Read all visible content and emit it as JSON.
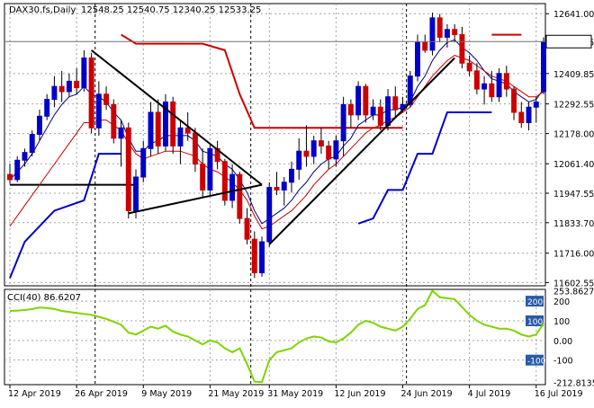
{
  "header": {
    "symbol": "DAX30.fs,Daily",
    "ohlc": "12548.25 12540.75 12340.25 12533.25"
  },
  "colors": {
    "bull": "#0000c8",
    "bear": "#cc0000",
    "ma_fast": "#000080",
    "ma_slow": "#cc0000",
    "level_red": "#cc0000",
    "level_blue": "#0000cc",
    "trendline": "#000000",
    "cci": "#7fd400",
    "grid": "#a0a0a0",
    "price_tag_bg": "#ffffff"
  },
  "chart_data": [
    {
      "type": "candlestick",
      "name": "price",
      "y_ticks": [
        "12641.00",
        "12533.25",
        "12409.85",
        "12292.55",
        "12178.00",
        "12061.40",
        "11947.55",
        "11833.70",
        "11716.00",
        "11602.55"
      ],
      "y_range": [
        11590,
        12680
      ],
      "current_price": 12533.25,
      "current_price_label": "12533.25",
      "x_labels": [
        "12 Apr 2019",
        "26 Apr 2019",
        "9 May 2019",
        "21 May 2019",
        "31 May 2019",
        "12 Jun 2019",
        "24 Jun 2019",
        "4 Jul 2019",
        "16 Jul 2019"
      ],
      "x_label_index": [
        0,
        9,
        18,
        27,
        35,
        44,
        53,
        62,
        71
      ],
      "candles": [
        [
          12020,
          12060,
          11985,
          12000
        ],
        [
          12000,
          12090,
          11990,
          12075
        ],
        [
          12075,
          12120,
          12050,
          12105
        ],
        [
          12105,
          12190,
          12090,
          12175
        ],
        [
          12175,
          12270,
          12150,
          12245
        ],
        [
          12245,
          12330,
          12230,
          12310
        ],
        [
          12310,
          12400,
          12280,
          12360
        ],
        [
          12360,
          12420,
          12300,
          12340
        ],
        [
          12340,
          12410,
          12320,
          12380
        ],
        [
          12380,
          12430,
          12330,
          12355
        ],
        [
          12355,
          12500,
          12340,
          12470
        ],
        [
          12470,
          12490,
          12180,
          12200
        ],
        [
          12200,
          12380,
          12170,
          12330
        ],
        [
          12330,
          12360,
          12270,
          12290
        ],
        [
          12290,
          12310,
          12140,
          12160
        ],
        [
          12160,
          12230,
          12050,
          12200
        ],
        [
          12200,
          12220,
          11850,
          11880
        ],
        [
          11880,
          12040,
          11850,
          12010
        ],
        [
          12010,
          12150,
          11990,
          12120
        ],
        [
          12120,
          12300,
          12090,
          12260
        ],
        [
          12260,
          12310,
          12100,
          12130
        ],
        [
          12130,
          12330,
          12110,
          12300
        ],
        [
          12300,
          12320,
          12100,
          12130
        ],
        [
          12130,
          12230,
          12060,
          12200
        ],
        [
          12200,
          12260,
          12150,
          12180
        ],
        [
          12180,
          12200,
          12030,
          12060
        ],
        [
          12060,
          12120,
          11930,
          11960
        ],
        [
          11960,
          12140,
          11940,
          12120
        ],
        [
          12120,
          12150,
          12040,
          12070
        ],
        [
          12070,
          12080,
          11900,
          11920
        ],
        [
          11920,
          12060,
          11890,
          12020
        ],
        [
          12020,
          12030,
          11830,
          11850
        ],
        [
          11850,
          11890,
          11750,
          11770
        ],
        [
          11770,
          11800,
          11620,
          11640
        ],
        [
          11640,
          11780,
          11625,
          11760
        ],
        [
          11760,
          11990,
          11740,
          11970
        ],
        [
          11970,
          12030,
          11940,
          11960
        ],
        [
          11960,
          12010,
          11900,
          11990
        ],
        [
          11990,
          12070,
          11950,
          12040
        ],
        [
          12040,
          12160,
          12000,
          12110
        ],
        [
          12110,
          12210,
          12050,
          12090
        ],
        [
          12090,
          12170,
          12060,
          12150
        ],
        [
          12150,
          12200,
          12100,
          12130
        ],
        [
          12130,
          12150,
          12040,
          12080
        ],
        [
          12080,
          12170,
          12050,
          12150
        ],
        [
          12150,
          12320,
          12090,
          12290
        ],
        [
          12290,
          12310,
          12200,
          12250
        ],
        [
          12250,
          12380,
          12230,
          12360
        ],
        [
          12360,
          12370,
          12220,
          12250
        ],
        [
          12250,
          12310,
          12230,
          12280
        ],
        [
          12280,
          12310,
          12190,
          12210
        ],
        [
          12210,
          12350,
          12190,
          12320
        ],
        [
          12320,
          12360,
          12240,
          12270
        ],
        [
          12270,
          12320,
          12260,
          12290
        ],
        [
          12290,
          12420,
          12280,
          12400
        ],
        [
          12400,
          12560,
          12380,
          12530
        ],
        [
          12530,
          12560,
          12490,
          12500
        ],
        [
          12500,
          12645,
          12480,
          12625
        ],
        [
          12625,
          12640,
          12530,
          12550
        ],
        [
          12550,
          12600,
          12510,
          12580
        ],
        [
          12580,
          12600,
          12530,
          12560
        ],
        [
          12560,
          12590,
          12430,
          12450
        ],
        [
          12450,
          12480,
          12400,
          12420
        ],
        [
          12420,
          12450,
          12330,
          12350
        ],
        [
          12350,
          12400,
          12290,
          12370
        ],
        [
          12370,
          12420,
          12300,
          12320
        ],
        [
          12320,
          12430,
          12300,
          12410
        ],
        [
          12410,
          12440,
          12320,
          12350
        ],
        [
          12350,
          12360,
          12230,
          12260
        ],
        [
          12260,
          12300,
          12200,
          12220
        ],
        [
          12220,
          12300,
          12190,
          12280
        ],
        [
          12280,
          12320,
          12220,
          12300
        ],
        [
          12340,
          12550,
          12330,
          12533
        ]
      ],
      "ma_fast": [
        12000,
        12030,
        12060,
        12100,
        12150,
        12200,
        12250,
        12290,
        12320,
        12330,
        12360,
        12330,
        12320,
        12300,
        12260,
        12230,
        12160,
        12110,
        12110,
        12140,
        12150,
        12170,
        12170,
        12170,
        12170,
        12150,
        12110,
        12100,
        12090,
        12060,
        12040,
        12000,
        11950,
        11880,
        11830,
        11850,
        11870,
        11890,
        11920,
        11960,
        11990,
        12030,
        12060,
        12080,
        12090,
        12130,
        12160,
        12210,
        12230,
        12250,
        12250,
        12270,
        12270,
        12280,
        12300,
        12360,
        12400,
        12460,
        12500,
        12530,
        12540,
        12510,
        12490,
        12460,
        12420,
        12390,
        12380,
        12370,
        12340,
        12320,
        12300,
        12310,
        12350
      ],
      "ma_slow": [
        11820,
        11860,
        11900,
        11940,
        11980,
        12020,
        12060,
        12100,
        12140,
        12180,
        12220,
        12220,
        12230,
        12230,
        12210,
        12190,
        12140,
        12100,
        12080,
        12090,
        12100,
        12110,
        12110,
        12110,
        12100,
        12090,
        12060,
        12040,
        12030,
        12010,
        11990,
        11960,
        11920,
        11860,
        11810,
        11820,
        11840,
        11860,
        11880,
        11910,
        11940,
        11980,
        12010,
        12040,
        12060,
        12090,
        12120,
        12150,
        12180,
        12200,
        12210,
        12230,
        12240,
        12260,
        12280,
        12320,
        12360,
        12400,
        12430,
        12460,
        12480,
        12470,
        12460,
        12440,
        12420,
        12400,
        12390,
        12380,
        12360,
        12340,
        12320,
        12320,
        12340
      ],
      "levels": [
        {
          "color": "red",
          "points": [
            [
              15,
              12560
            ],
            [
              17,
              12525
            ],
            [
              26,
              12525
            ],
            [
              29,
              12500
            ],
            [
              31,
              12330
            ],
            [
              33,
              12200
            ],
            [
              53,
              12200
            ]
          ]
        },
        {
          "color": "red",
          "points": [
            [
              65,
              12560
            ],
            [
              69,
              12560
            ]
          ]
        },
        {
          "color": "blue",
          "points": [
            [
              0,
              11620
            ],
            [
              2,
              11760
            ],
            [
              6,
              11880
            ],
            [
              10,
              11920
            ],
            [
              12,
              12100
            ],
            [
              15,
              12100
            ]
          ]
        },
        {
          "color": "blue",
          "points": [
            [
              47,
              11830
            ],
            [
              49,
              11850
            ],
            [
              51,
              11960
            ],
            [
              53,
              11960
            ],
            [
              55,
              12100
            ],
            [
              57,
              12100
            ],
            [
              59,
              12260
            ],
            [
              65,
              12260
            ]
          ]
        },
        {
          "color": "black",
          "points": [
            [
              0,
              11980
            ],
            [
              17,
              11980
            ]
          ]
        }
      ],
      "trendlines": [
        [
          [
            11,
            12500
          ],
          [
            34,
            11980
          ]
        ],
        [
          [
            16,
            11870
          ],
          [
            34,
            11980
          ]
        ],
        [
          [
            35,
            11750
          ],
          [
            60,
            12470
          ]
        ]
      ],
      "vlines": [
        11,
        32,
        53
      ],
      "vlines_dashed": [
        11,
        32,
        53
      ]
    },
    {
      "type": "line",
      "name": "CCI(40)",
      "label": "CCI(40) 86.6207",
      "y_ticks": [
        "253.8627",
        "200",
        "100",
        "0.00",
        "-100",
        "-212.8135"
      ],
      "y_range": [
        -225,
        260
      ],
      "levels": [
        200,
        100,
        0,
        -100
      ],
      "values": [
        150,
        152,
        155,
        160,
        168,
        165,
        160,
        150,
        145,
        140,
        135,
        130,
        120,
        110,
        95,
        80,
        40,
        30,
        50,
        70,
        60,
        75,
        45,
        30,
        20,
        0,
        -20,
        0,
        -10,
        -40,
        -60,
        -40,
        -120,
        -210,
        -212,
        -100,
        -60,
        -50,
        -40,
        -10,
        10,
        20,
        15,
        -5,
        -10,
        10,
        40,
        80,
        100,
        90,
        70,
        60,
        50,
        70,
        110,
        160,
        180,
        253,
        220,
        215,
        210,
        170,
        130,
        100,
        80,
        70,
        60,
        60,
        50,
        30,
        20,
        30,
        87
      ],
      "value_label": "86.6207"
    }
  ]
}
